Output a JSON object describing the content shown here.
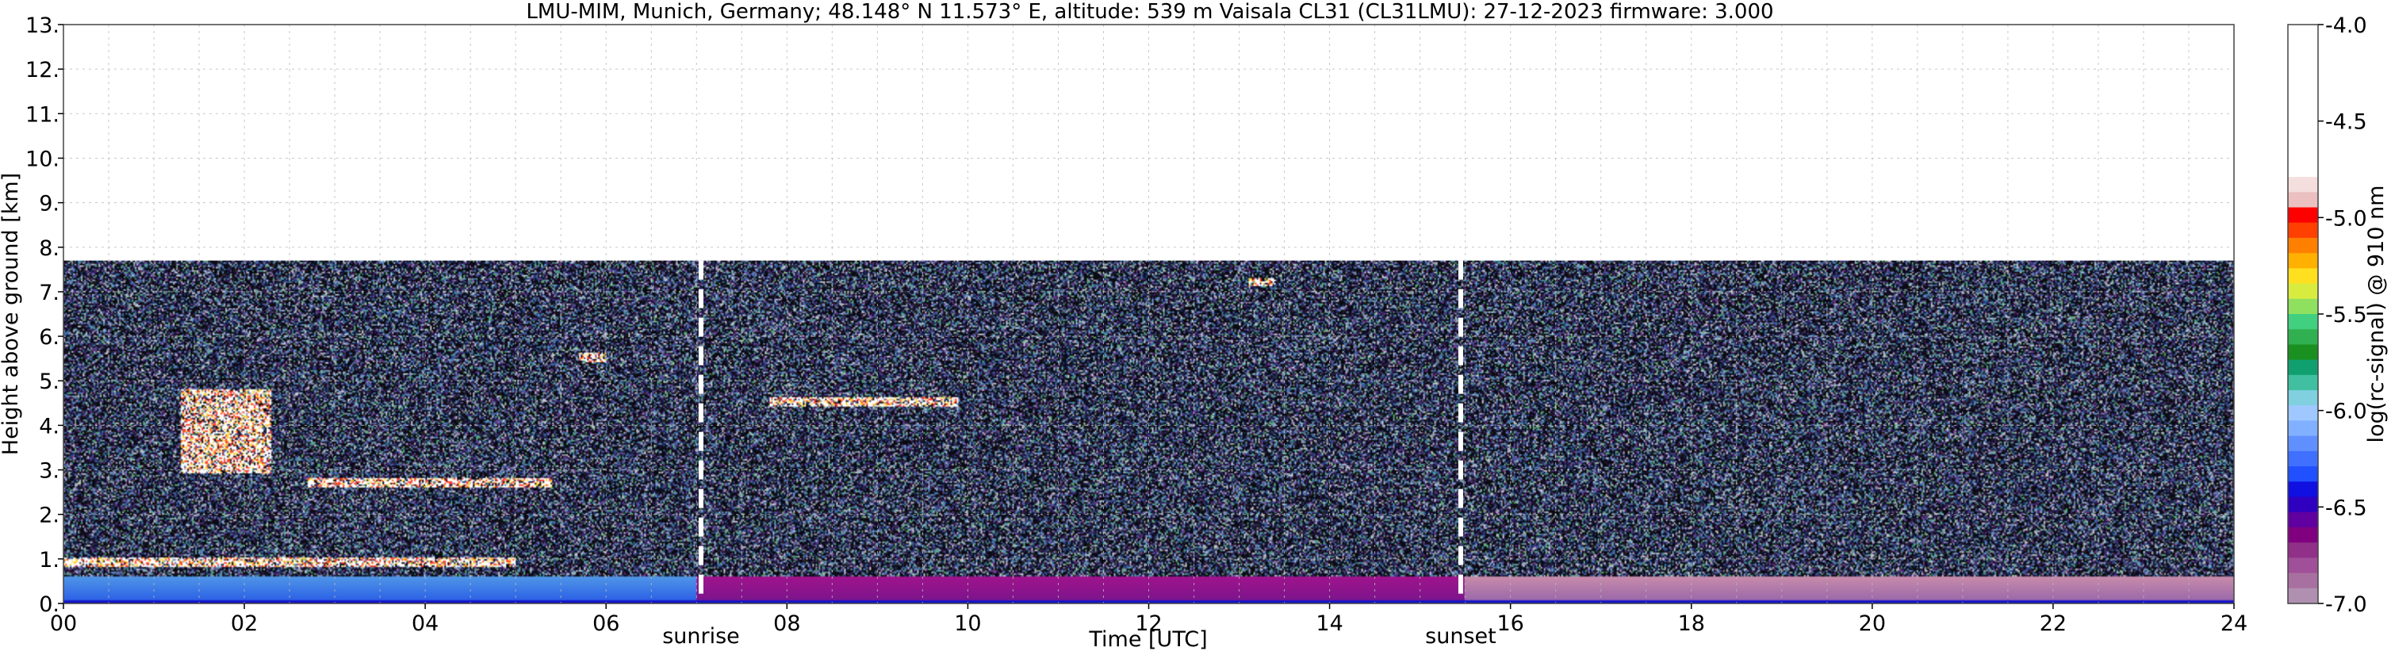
{
  "chart_data": {
    "type": "heatmap",
    "title": "LMU-MIM, Munich, Germany; 48.148° N 11.573° E, altitude: 539 m    Vaisala CL31 (CL31LMU): 27-12-2023    firmware: 3.000",
    "xlabel": "Time [UTC]",
    "ylabel": "Height above ground [km]",
    "xlim": [
      0,
      24
    ],
    "ylim": [
      0,
      13
    ],
    "x_ticks": [
      "00",
      "02",
      "04",
      "06",
      "08",
      "10",
      "12",
      "14",
      "16",
      "18",
      "20",
      "22",
      "24"
    ],
    "y_ticks": [
      "0.",
      "1.",
      "2.",
      "3.",
      "4.",
      "5.",
      "6.",
      "7.",
      "8.",
      "9.",
      "10.",
      "11.",
      "12.",
      "13."
    ],
    "measurement_top_km": 7.7,
    "grid": true,
    "annotations": [
      {
        "label": "sunrise",
        "x": 7.05
      },
      {
        "label": "sunset",
        "x": 15.45
      }
    ],
    "colorbar": {
      "label": "log(rc-signal) @ 910 nm",
      "range": [
        -7.0,
        -4.0
      ],
      "ticks": [
        "-4.0",
        "-4.5",
        "-5.0",
        "-5.5",
        "-6.0",
        "-6.5",
        "-7.0"
      ],
      "colors": [
        "#ffffff",
        "#ffffff",
        "#ffffff",
        "#ffffff",
        "#ffffff",
        "#ffffff",
        "#ffffff",
        "#ffffff",
        "#ffffff",
        "#ffffff",
        "#f4dede",
        "#ecc0c0",
        "#ff0000",
        "#ff4000",
        "#ff8000",
        "#ffb000",
        "#ffe020",
        "#d8ec40",
        "#90e060",
        "#40d080",
        "#30b050",
        "#1a9020",
        "#10a070",
        "#40c0a0",
        "#80d0e0",
        "#9ec8ff",
        "#80b0ff",
        "#6090ff",
        "#4070ff",
        "#2050ff",
        "#1010e0",
        "#3000c0",
        "#6000a0",
        "#800080",
        "#903088",
        "#a05098",
        "#a870a0",
        "#b090b0"
      ]
    },
    "features": [
      {
        "kind": "boundary_layer",
        "x_start": 0,
        "x_end": 24,
        "top_km": 0.6
      },
      {
        "kind": "low_cloud",
        "x_start": 0,
        "x_end": 5.0,
        "height_km": 0.9
      },
      {
        "kind": "cloud",
        "x_start": 1.3,
        "x_end": 2.3,
        "height_km": 3.0,
        "top_km": 4.8
      },
      {
        "kind": "cloud",
        "x_start": 2.7,
        "x_end": 5.4,
        "height_km": 2.7
      },
      {
        "kind": "cloud",
        "x_start": 5.7,
        "x_end": 6.0,
        "height_km": 5.5
      },
      {
        "kind": "cloud",
        "x_start": 7.8,
        "x_end": 9.9,
        "height_km": 4.5
      },
      {
        "kind": "cloud",
        "x_start": 13.1,
        "x_end": 13.4,
        "height_km": 7.2
      }
    ]
  }
}
